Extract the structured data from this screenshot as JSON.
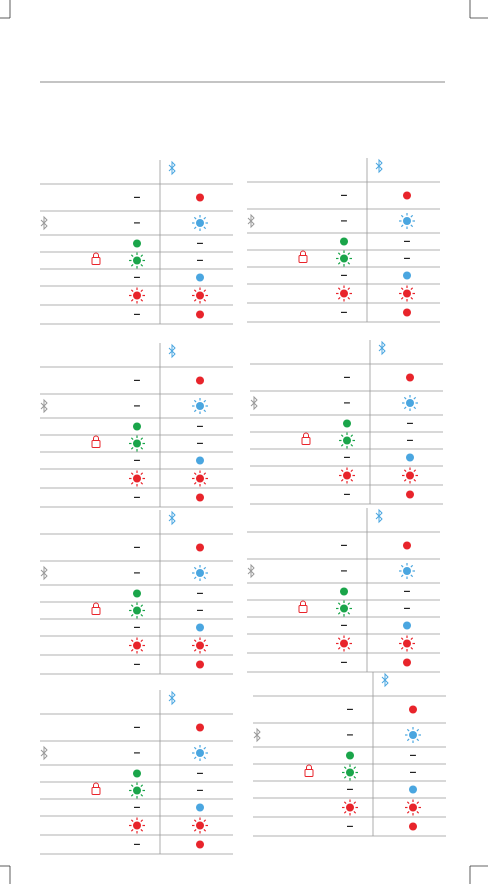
{
  "tables": [
    {
      "rows": [
        [
          "–",
          null
        ],
        [
          "–",
          null
        ],
        [
          null,
          "–"
        ],
        [
          null,
          "–"
        ],
        [
          "–",
          null
        ],
        [
          null,
          null
        ],
        [
          "–",
          null
        ]
      ]
    },
    {
      "rows": [
        [
          "–",
          null
        ],
        [
          "–",
          null
        ],
        [
          null,
          "–"
        ],
        [
          null,
          "–"
        ],
        [
          "–",
          null
        ],
        [
          null,
          null
        ],
        [
          "–",
          null
        ]
      ]
    },
    {
      "rows": [
        [
          "–",
          null
        ],
        [
          "–",
          null
        ],
        [
          null,
          "–"
        ],
        [
          null,
          "–"
        ],
        [
          "–",
          null
        ],
        [
          null,
          null
        ],
        [
          "–",
          null
        ]
      ]
    },
    {
      "rows": [
        [
          "–",
          null
        ],
        [
          "–",
          null
        ],
        [
          null,
          "–"
        ],
        [
          null,
          "–"
        ],
        [
          "–",
          null
        ],
        [
          null,
          null
        ],
        [
          "–",
          null
        ]
      ]
    },
    {
      "rows": [
        [
          "–",
          null
        ],
        [
          "–",
          null
        ],
        [
          null,
          "–"
        ],
        [
          null,
          "–"
        ],
        [
          "–",
          null
        ],
        [
          null,
          null
        ],
        [
          "–",
          null
        ]
      ]
    },
    {
      "rows": [
        [
          "–",
          null
        ],
        [
          "–",
          null
        ],
        [
          null,
          "–"
        ],
        [
          null,
          "–"
        ],
        [
          "–",
          null
        ],
        [
          null,
          null
        ],
        [
          "–",
          null
        ]
      ]
    },
    {
      "rows": [
        [
          "–",
          null
        ],
        [
          "–",
          null
        ],
        [
          null,
          "–"
        ],
        [
          null,
          "–"
        ],
        [
          "–",
          null
        ],
        [
          null,
          null
        ],
        [
          "–",
          null
        ]
      ]
    },
    {
      "rows": [
        [
          "–",
          null
        ],
        [
          "–",
          null
        ],
        [
          null,
          "–"
        ],
        [
          null,
          "–"
        ],
        [
          "–",
          null
        ],
        [
          null,
          null
        ],
        [
          "–",
          null
        ]
      ]
    }
  ]
}
